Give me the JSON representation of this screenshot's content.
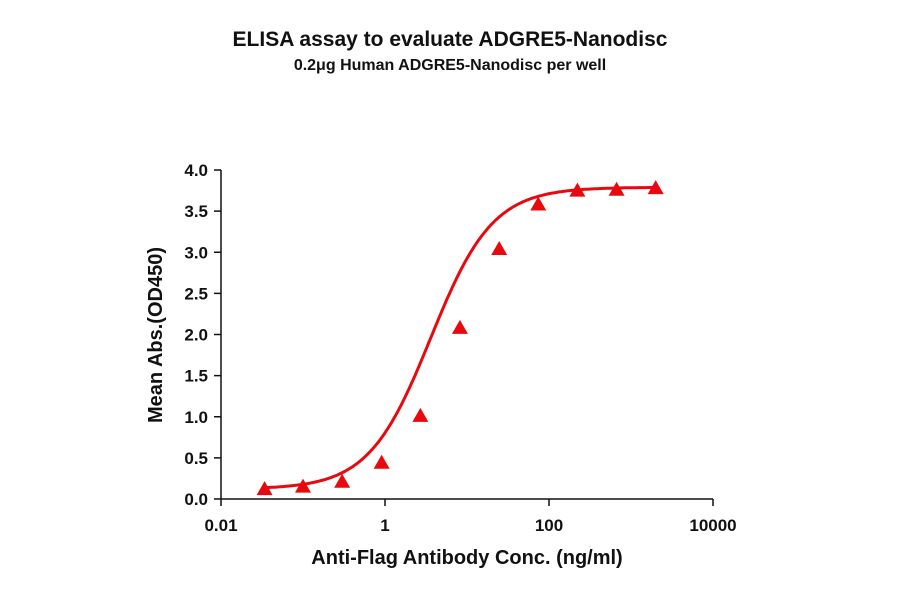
{
  "chart_data": {
    "type": "line",
    "title": "ELISA assay to evaluate ADGRE5-Nanodisc",
    "subtitle": "0.2μg Human ADGRE5-Nanodisc per well",
    "xlabel": "Anti-Flag Antibody Conc. (ng/ml)",
    "ylabel": "Mean Abs.(OD450)",
    "xscale": "log",
    "xlim": [
      0.01,
      10000
    ],
    "ylim": [
      0.0,
      4.0
    ],
    "x_ticks": [
      "0.01",
      "1",
      "100",
      "10000"
    ],
    "y_ticks": [
      "0.0",
      "0.5",
      "1.0",
      "1.5",
      "2.0",
      "2.5",
      "3.0",
      "3.5",
      "4.0"
    ],
    "grid": false,
    "legend": null,
    "series": [
      {
        "name": "ADGRE5-Nanodisc",
        "color": "#e8090e",
        "marker": "triangle",
        "fit": "4PL sigmoidal",
        "x": [
          0.034,
          0.1,
          0.3,
          0.91,
          2.7,
          8.2,
          24.7,
          74,
          222,
          667,
          2000
        ],
        "y": [
          0.12,
          0.15,
          0.21,
          0.44,
          1.01,
          2.08,
          3.04,
          3.58,
          3.75,
          3.76,
          3.78
        ]
      }
    ]
  }
}
